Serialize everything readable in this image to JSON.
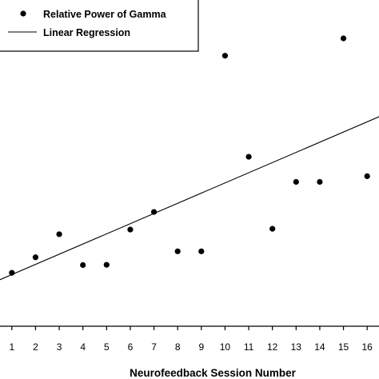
{
  "chart_data": {
    "type": "scatter",
    "xlabel": "Neurofeedback Session Number",
    "ylabel": "",
    "x": [
      1,
      2,
      3,
      4,
      5,
      6,
      7,
      8,
      9,
      10,
      11,
      12,
      13,
      14,
      15,
      16
    ],
    "xlim": [
      0.5,
      16.5
    ],
    "ylim": [
      0,
      100
    ],
    "series": [
      {
        "name": "Relative Power of Gamma",
        "marker": "dot",
        "color": "#000000",
        "values": [
          9.5,
          15.5,
          24.4,
          12.5,
          12.6,
          26.2,
          33.0,
          17.8,
          17.8,
          93.3,
          54.3,
          26.5,
          44.6,
          44.6,
          100.0,
          46.8
        ]
      },
      {
        "name": "Linear Regression",
        "type": "line",
        "color": "#000000",
        "intercept": 4.9,
        "slope": 3.93
      }
    ],
    "legend": "top-left",
    "grid": false
  }
}
